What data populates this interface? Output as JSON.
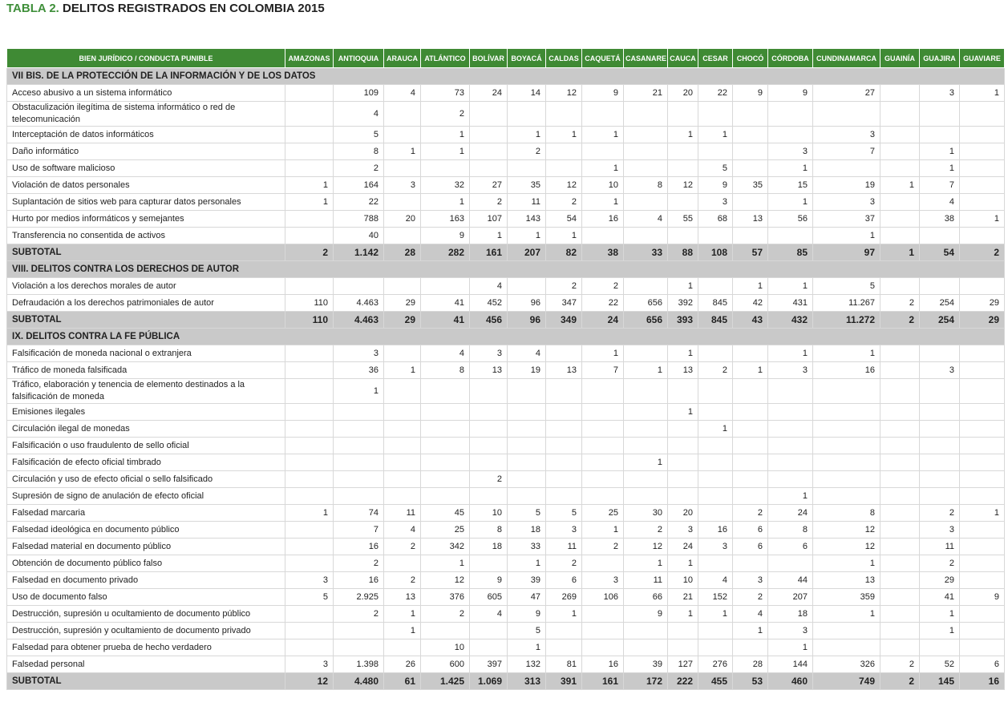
{
  "title": {
    "prefix": "TABLA 2.",
    "text": "DELITOS REGISTRADOS EN COLOMBIA 2015"
  },
  "table": {
    "header": [
      "BIEN JURÍDICO / CONDUCTA PUNIBLE",
      "AMAZONAS",
      "ANTIOQUIA",
      "ARAUCA",
      "ATLÁNTICO",
      "BOLÍVAR",
      "BOYACÁ",
      "CALDAS",
      "CAQUETÁ",
      "CASANARE",
      "CAUCA",
      "CESAR",
      "CHOCÓ",
      "CÓRDOBA",
      "CUNDINAMARCA",
      "GUAINÍA",
      "GUAJIRA",
      "GUAVIARE"
    ],
    "sections": [
      {
        "title": "VII BIS. DE LA PROTECCIÓN DE LA INFORMACIÓN Y DE LOS DATOS",
        "rows": [
          {
            "label": "Acceso abusivo a un sistema informático",
            "values": [
              null,
              "109",
              "4",
              "73",
              "24",
              "14",
              "12",
              "9",
              "21",
              "20",
              "22",
              "9",
              "9",
              "27",
              null,
              "3",
              "1"
            ]
          },
          {
            "label": "Obstaculización ilegítima de sistema informático o red de telecomunicación",
            "values": [
              null,
              "4",
              null,
              "2",
              null,
              null,
              null,
              null,
              null,
              null,
              null,
              null,
              null,
              null,
              null,
              null,
              null
            ]
          },
          {
            "label": "Interceptación de datos informáticos",
            "values": [
              null,
              "5",
              null,
              "1",
              null,
              "1",
              "1",
              "1",
              null,
              "1",
              "1",
              null,
              null,
              "3",
              null,
              null,
              null
            ]
          },
          {
            "label": "Daño informático",
            "values": [
              null,
              "8",
              "1",
              "1",
              null,
              "2",
              null,
              null,
              null,
              null,
              null,
              null,
              "3",
              "7",
              null,
              "1",
              null
            ]
          },
          {
            "label": "Uso de software malicioso",
            "values": [
              null,
              "2",
              null,
              null,
              null,
              null,
              null,
              "1",
              null,
              null,
              "5",
              null,
              "1",
              null,
              null,
              "1",
              null
            ]
          },
          {
            "label": "Violación de datos personales",
            "values": [
              "1",
              "164",
              "3",
              "32",
              "27",
              "35",
              "12",
              "10",
              "8",
              "12",
              "9",
              "35",
              "15",
              "19",
              "1",
              "7",
              null
            ]
          },
          {
            "label": "Suplantación de sitios web para capturar datos personales",
            "values": [
              "1",
              "22",
              null,
              "1",
              "2",
              "11",
              "2",
              "1",
              null,
              null,
              "3",
              null,
              "1",
              "3",
              null,
              "4",
              null
            ]
          },
          {
            "label": "Hurto por medios informáticos y semejantes",
            "values": [
              null,
              "788",
              "20",
              "163",
              "107",
              "143",
              "54",
              "16",
              "4",
              "55",
              "68",
              "13",
              "56",
              "37",
              null,
              "38",
              "1"
            ]
          },
          {
            "label": "Transferencia no consentida de activos",
            "values": [
              null,
              "40",
              null,
              "9",
              "1",
              "1",
              "1",
              null,
              null,
              null,
              null,
              null,
              null,
              "1",
              null,
              null,
              null
            ]
          }
        ],
        "subtotal": {
          "label": "SUBTOTAL",
          "values": [
            "2",
            "1.142",
            "28",
            "282",
            "161",
            "207",
            "82",
            "38",
            "33",
            "88",
            "108",
            "57",
            "85",
            "97",
            "1",
            "54",
            "2"
          ]
        }
      },
      {
        "title": "VIII. DELITOS CONTRA LOS DERECHOS DE AUTOR",
        "rows": [
          {
            "label": "Violación a los derechos morales de autor",
            "values": [
              null,
              null,
              null,
              null,
              "4",
              null,
              "2",
              "2",
              null,
              "1",
              null,
              "1",
              "1",
              "5",
              null,
              null,
              null
            ]
          },
          {
            "label": "Defraudación a los derechos patrimoniales de autor",
            "values": [
              "110",
              "4.463",
              "29",
              "41",
              "452",
              "96",
              "347",
              "22",
              "656",
              "392",
              "845",
              "42",
              "431",
              "11.267",
              "2",
              "254",
              "29"
            ]
          }
        ],
        "subtotal": {
          "label": "SUBTOTAL",
          "values": [
            "110",
            "4.463",
            "29",
            "41",
            "456",
            "96",
            "349",
            "24",
            "656",
            "393",
            "845",
            "43",
            "432",
            "11.272",
            "2",
            "254",
            "29"
          ]
        }
      },
      {
        "title": "IX. DELITOS CONTRA LA FE PÚBLICA",
        "rows": [
          {
            "label": "Falsificación de moneda nacional o extranjera",
            "values": [
              null,
              "3",
              null,
              "4",
              "3",
              "4",
              null,
              "1",
              null,
              "1",
              null,
              null,
              "1",
              "1",
              null,
              null,
              null
            ]
          },
          {
            "label": "Tráfico de moneda falsificada",
            "values": [
              null,
              "36",
              "1",
              "8",
              "13",
              "19",
              "13",
              "7",
              "1",
              "13",
              "2",
              "1",
              "3",
              "16",
              null,
              "3",
              null
            ]
          },
          {
            "label": "Tráfico, elaboración y tenencia de elemento destinados a la falsificación de moneda",
            "values": [
              null,
              "1",
              null,
              null,
              null,
              null,
              null,
              null,
              null,
              null,
              null,
              null,
              null,
              null,
              null,
              null,
              null
            ]
          },
          {
            "label": "Emisiones ilegales",
            "values": [
              null,
              null,
              null,
              null,
              null,
              null,
              null,
              null,
              null,
              "1",
              null,
              null,
              null,
              null,
              null,
              null,
              null
            ]
          },
          {
            "label": "Circulación ilegal de monedas",
            "values": [
              null,
              null,
              null,
              null,
              null,
              null,
              null,
              null,
              null,
              null,
              "1",
              null,
              null,
              null,
              null,
              null,
              null
            ]
          },
          {
            "label": "Falsificación o uso fraudulento de sello oficial",
            "values": [
              null,
              null,
              null,
              null,
              null,
              null,
              null,
              null,
              null,
              null,
              null,
              null,
              null,
              null,
              null,
              null,
              null
            ]
          },
          {
            "label": "Falsificación de efecto oficial timbrado",
            "values": [
              null,
              null,
              null,
              null,
              null,
              null,
              null,
              null,
              "1",
              null,
              null,
              null,
              null,
              null,
              null,
              null,
              null
            ]
          },
          {
            "label": "Circulación y uso de efecto oficial o sello falsificado",
            "values": [
              null,
              null,
              null,
              null,
              "2",
              null,
              null,
              null,
              null,
              null,
              null,
              null,
              null,
              null,
              null,
              null,
              null
            ]
          },
          {
            "label": "Supresión de signo de anulación de efecto oficial",
            "values": [
              null,
              null,
              null,
              null,
              null,
              null,
              null,
              null,
              null,
              null,
              null,
              null,
              "1",
              null,
              null,
              null,
              null
            ]
          },
          {
            "label": "Falsedad marcaria",
            "values": [
              "1",
              "74",
              "11",
              "45",
              "10",
              "5",
              "5",
              "25",
              "30",
              "20",
              null,
              "2",
              "24",
              "8",
              null,
              "2",
              "1"
            ]
          },
          {
            "label": "Falsedad ideológica en documento público",
            "values": [
              null,
              "7",
              "4",
              "25",
              "8",
              "18",
              "3",
              "1",
              "2",
              "3",
              "16",
              "6",
              "8",
              "12",
              null,
              "3",
              null
            ]
          },
          {
            "label": "Falsedad material en documento público",
            "values": [
              null,
              "16",
              "2",
              "342",
              "18",
              "33",
              "11",
              "2",
              "12",
              "24",
              "3",
              "6",
              "6",
              "12",
              null,
              "11",
              null
            ]
          },
          {
            "label": "Obtención de documento público falso",
            "values": [
              null,
              "2",
              null,
              "1",
              null,
              "1",
              "2",
              null,
              "1",
              "1",
              null,
              null,
              null,
              "1",
              null,
              "2",
              null
            ]
          },
          {
            "label": "Falsedad en documento privado",
            "values": [
              "3",
              "16",
              "2",
              "12",
              "9",
              "39",
              "6",
              "3",
              "11",
              "10",
              "4",
              "3",
              "44",
              "13",
              null,
              "29",
              null
            ]
          },
          {
            "label": "Uso de documento falso",
            "values": [
              "5",
              "2.925",
              "13",
              "376",
              "605",
              "47",
              "269",
              "106",
              "66",
              "21",
              "152",
              "2",
              "207",
              "359",
              null,
              "41",
              "9"
            ]
          },
          {
            "label": "Destrucción, supresión u ocultamiento de documento público",
            "values": [
              null,
              "2",
              "1",
              "2",
              "4",
              "9",
              "1",
              null,
              "9",
              "1",
              "1",
              "4",
              "18",
              "1",
              null,
              "1",
              null
            ]
          },
          {
            "label": "Destrucción, supresión y ocultamiento de documento privado",
            "values": [
              null,
              null,
              "1",
              null,
              null,
              "5",
              null,
              null,
              null,
              null,
              null,
              "1",
              "3",
              null,
              null,
              "1",
              null
            ]
          },
          {
            "label": "Falsedad para obtener prueba de hecho verdadero",
            "values": [
              null,
              null,
              null,
              "10",
              null,
              "1",
              null,
              null,
              null,
              null,
              null,
              null,
              "1",
              null,
              null,
              null,
              null
            ]
          },
          {
            "label": "Falsedad personal",
            "values": [
              "3",
              "1.398",
              "26",
              "600",
              "397",
              "132",
              "81",
              "16",
              "39",
              "127",
              "276",
              "28",
              "144",
              "326",
              "2",
              "52",
              "6"
            ]
          }
        ],
        "subtotal": {
          "label": "SUBTOTAL",
          "values": [
            "12",
            "4.480",
            "61",
            "1.425",
            "1.069",
            "313",
            "391",
            "161",
            "172",
            "222",
            "455",
            "53",
            "460",
            "749",
            "2",
            "145",
            "16"
          ]
        }
      }
    ]
  }
}
